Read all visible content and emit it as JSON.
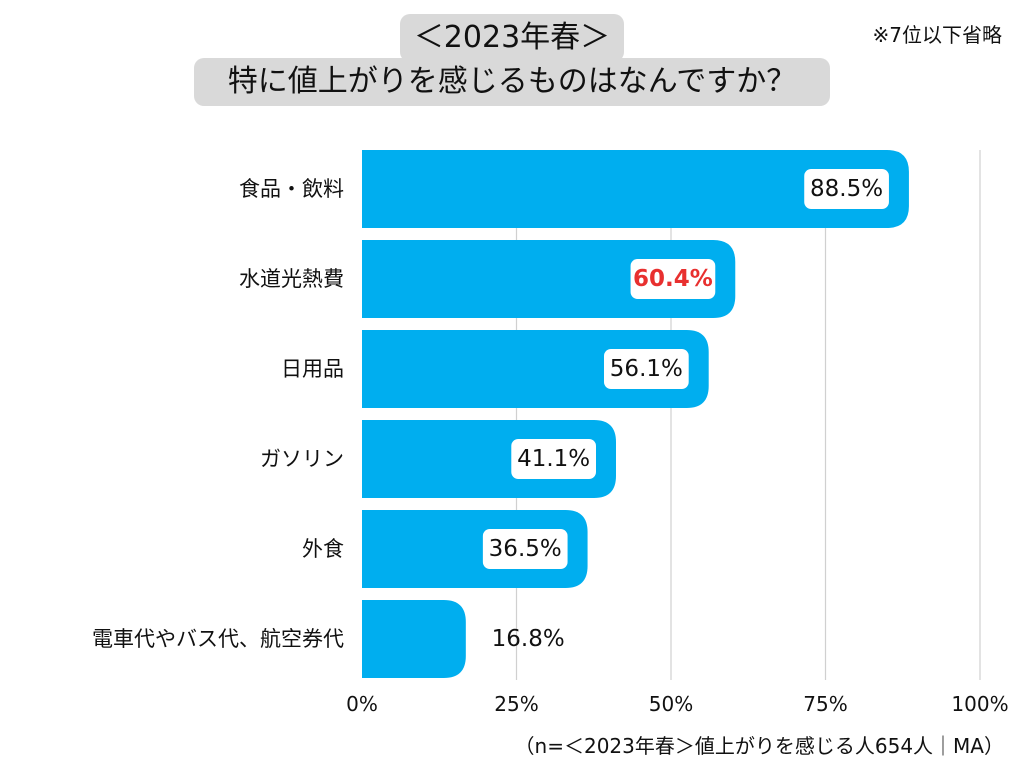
{
  "title": {
    "line1": "＜2023年春＞",
    "line2": "特に値上がりを感じるものはなんですか？"
  },
  "note": "※7位以下省略",
  "footnote": "（n=＜2023年春＞値上がりを感じる人654人｜MA）",
  "colors": {
    "bar": "#00aeef",
    "grid": "#d0d0d0",
    "highlight_text": "#e8302f",
    "text": "#111111",
    "label_box": "#ffffff",
    "title_box": "#d9d9d9"
  },
  "chart_data": {
    "type": "bar",
    "orientation": "horizontal",
    "categories": [
      "食品・飲料",
      "水道光熱費",
      "日用品",
      "ガソリン",
      "外食",
      "電車代やバス代、航空券代"
    ],
    "values": [
      88.5,
      60.4,
      56.1,
      41.1,
      36.5,
      16.8
    ],
    "value_labels": [
      "88.5%",
      "60.4%",
      "56.1%",
      "41.1%",
      "36.5%",
      "16.8%"
    ],
    "highlighted_index": 1,
    "xlim": [
      0,
      100
    ],
    "x_ticks": [
      0,
      25,
      50,
      75,
      100
    ],
    "x_tick_labels": [
      "0%",
      "25%",
      "50%",
      "75%",
      "100%"
    ],
    "grid": true,
    "legend": "none"
  }
}
